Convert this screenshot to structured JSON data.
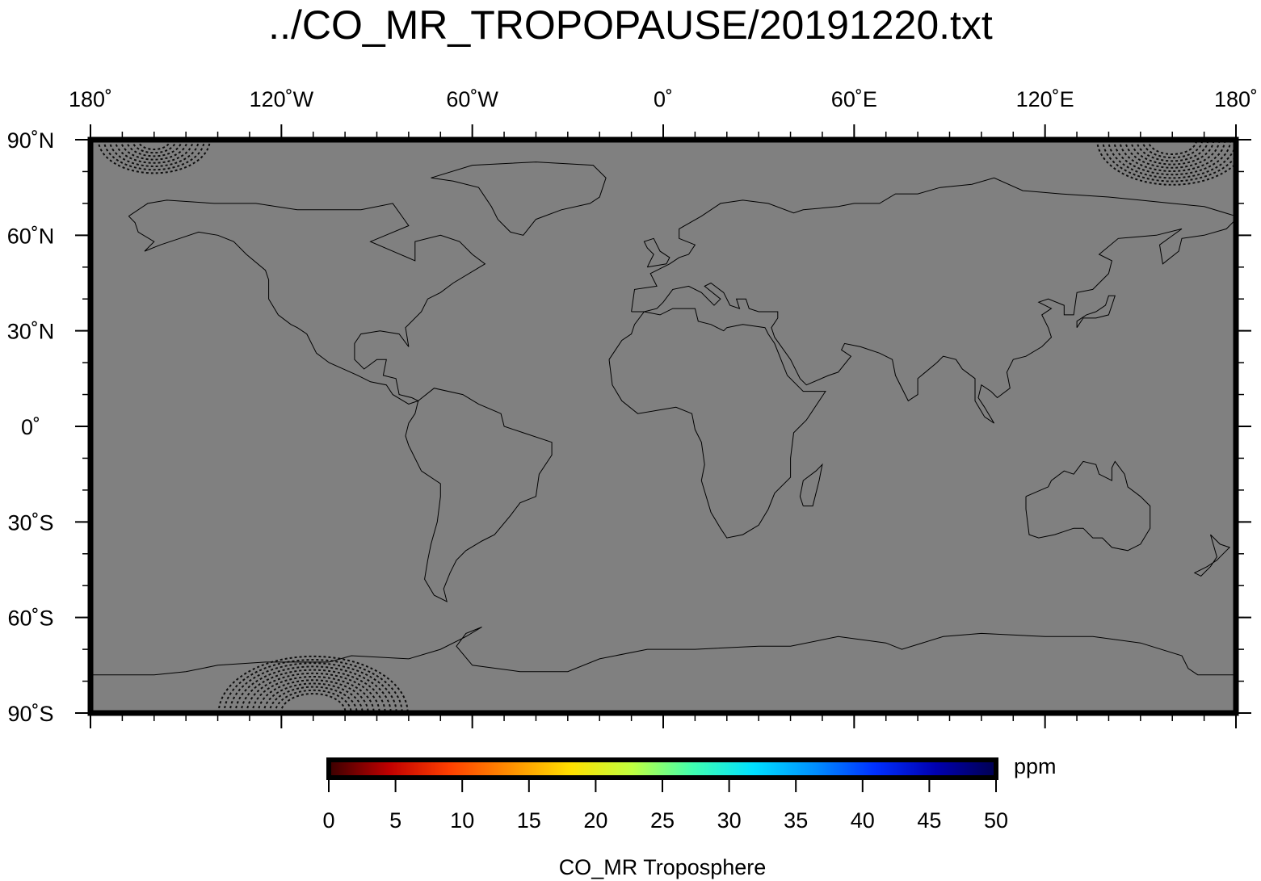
{
  "title": "../CO_MR_TROPOPAUSE/20191220.txt",
  "map": {
    "projection": "equirectangular",
    "extent": {
      "lon": [
        -180,
        180
      ],
      "lat": [
        -90,
        90
      ]
    },
    "background_color": "#808080",
    "frame_color": "#000000",
    "coastline_color": "#000000",
    "lon_ticks": [
      {
        "value": -180,
        "label": "180˚"
      },
      {
        "value": -120,
        "label": "120˚W"
      },
      {
        "value": -60,
        "label": "60˚W"
      },
      {
        "value": 0,
        "label": "0˚"
      },
      {
        "value": 60,
        "label": "60˚E"
      },
      {
        "value": 120,
        "label": "120˚E"
      },
      {
        "value": 180,
        "label": "180˚"
      }
    ],
    "lat_ticks": [
      {
        "value": 90,
        "label": "90˚N"
      },
      {
        "value": 60,
        "label": "60˚N"
      },
      {
        "value": 30,
        "label": "30˚N"
      },
      {
        "value": 0,
        "label": "0˚"
      },
      {
        "value": -30,
        "label": "30˚S"
      },
      {
        "value": -60,
        "label": "60˚S"
      },
      {
        "value": -90,
        "label": "90˚S"
      }
    ],
    "minor_tick_step_deg": 10
  },
  "colorbar": {
    "unit": "ppm",
    "label": "CO_MR Troposphere",
    "range": [
      0,
      50
    ],
    "ticks": [
      "0",
      "5",
      "10",
      "15",
      "20",
      "25",
      "30",
      "35",
      "40",
      "45",
      "50"
    ],
    "colors": [
      "#3a0000",
      "#c00000",
      "#ff4000",
      "#ff9000",
      "#ffe000",
      "#c0ff40",
      "#40ffb0",
      "#00e0ff",
      "#0090ff",
      "#0030ff",
      "#0000b0",
      "#000050"
    ]
  }
}
